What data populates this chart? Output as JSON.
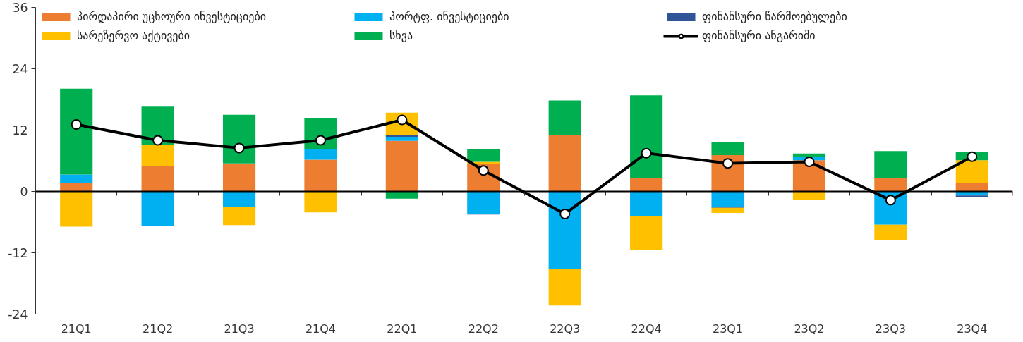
{
  "chart_data": {
    "type": "bar",
    "stacked": true,
    "categories": [
      "21Q1",
      "21Q2",
      "21Q3",
      "21Q4",
      "22Q1",
      "22Q2",
      "22Q3",
      "22Q4",
      "23Q1",
      "23Q2",
      "23Q3",
      "23Q4"
    ],
    "series": [
      {
        "name": "პირდაპირი უცხოური ინვესტიციები",
        "color": "#ed7d31",
        "values": [
          1.7,
          4.9,
          5.5,
          6.2,
          9.9,
          5.4,
          11.0,
          2.7,
          7.1,
          6.1,
          2.7,
          1.6
        ]
      },
      {
        "name": "პორტფ. ინვესტიციები",
        "color": "#00b0f0",
        "values": [
          1.6,
          -6.8,
          -3.1,
          2.0,
          0.8,
          -4.4,
          -15.1,
          -4.8,
          -3.1,
          0.6,
          -6.5,
          -0.8
        ]
      },
      {
        "name": "ფინანსური წარმოებულები",
        "color": "#2f5597",
        "values": [
          0,
          0,
          0,
          0,
          0.3,
          -0.1,
          0,
          -0.1,
          -0.1,
          0,
          0,
          -0.3
        ]
      },
      {
        "name": "სარეზერვო აქტივები",
        "color": "#ffc000",
        "values": [
          -6.9,
          4.2,
          -3.5,
          -4.1,
          4.4,
          0.4,
          -7.2,
          -6.5,
          -1.0,
          -1.6,
          -3.0,
          4.5
        ]
      },
      {
        "name": "სხვა",
        "color": "#00b050",
        "values": [
          16.8,
          7.5,
          9.5,
          6.1,
          -1.4,
          2.5,
          6.8,
          16.1,
          2.5,
          0.7,
          5.2,
          1.7
        ]
      },
      {
        "name": "ფინანსური ანგარიში",
        "type": "line",
        "color": "#000000",
        "marker": "circle",
        "values": [
          13.1,
          10.0,
          8.5,
          10.0,
          14.0,
          4.1,
          -4.4,
          7.5,
          5.5,
          5.8,
          -1.7,
          6.8
        ]
      }
    ],
    "ref_lines": [
      {
        "axis": "y",
        "value": 0,
        "color": "#000000"
      }
    ],
    "ylim": [
      -24,
      36
    ],
    "yticks": [
      -24,
      -12,
      0,
      12,
      24,
      36
    ],
    "grid": false,
    "legend": "top"
  }
}
